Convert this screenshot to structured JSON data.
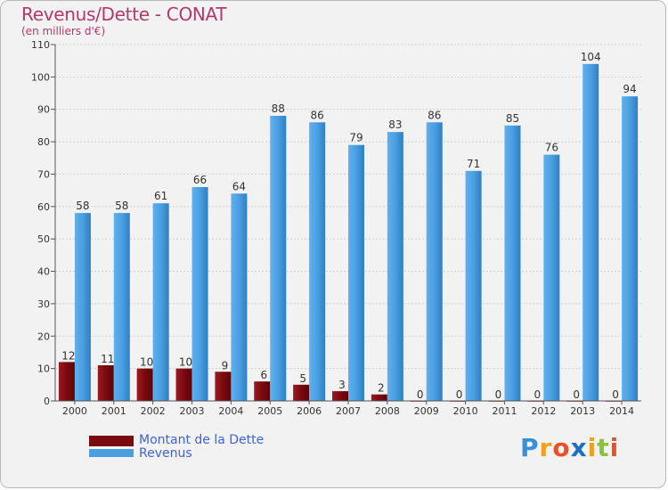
{
  "chart_data": {
    "type": "bar",
    "title": "Revenus/Dette - CONAT",
    "subtitle": "(en milliers d'€)",
    "categories": [
      "2000",
      "2001",
      "2002",
      "2003",
      "2004",
      "2005",
      "2006",
      "2007",
      "2008",
      "2009",
      "2010",
      "2011",
      "2012",
      "2013",
      "2014"
    ],
    "series": [
      {
        "name": "Montant de la Dette",
        "color": "#7a0a0f",
        "values": [
          12,
          11,
          10,
          10,
          9,
          6,
          5,
          3,
          2,
          0,
          0,
          0,
          0,
          0,
          0
        ]
      },
      {
        "name": "Revenus",
        "color": "#4a9fe0",
        "values": [
          58,
          58,
          61,
          66,
          64,
          88,
          86,
          79,
          83,
          86,
          71,
          85,
          76,
          104,
          94
        ]
      }
    ],
    "ylim": [
      0,
      110
    ],
    "yticks": [
      0,
      10,
      20,
      30,
      40,
      50,
      60,
      70,
      80,
      90,
      100,
      110
    ],
    "xlabel": "",
    "ylabel": ""
  },
  "legend": {
    "items": [
      {
        "label": "Montant de la Dette",
        "color": "#7a0a0f"
      },
      {
        "label": "Revenus",
        "color": "#4a9fe0"
      }
    ]
  },
  "logo": {
    "letters": [
      {
        "ch": "P",
        "color": "#3b8fd8"
      },
      {
        "ch": "r",
        "color": "#f0a020"
      },
      {
        "ch": "o",
        "color": "#e8522a"
      },
      {
        "ch": "x",
        "color": "#1f6fc2"
      },
      {
        "ch": "i",
        "color": "#f0a020"
      },
      {
        "ch": "t",
        "color": "#8bc23a"
      },
      {
        "ch": "i",
        "color": "#e8522a"
      }
    ]
  }
}
